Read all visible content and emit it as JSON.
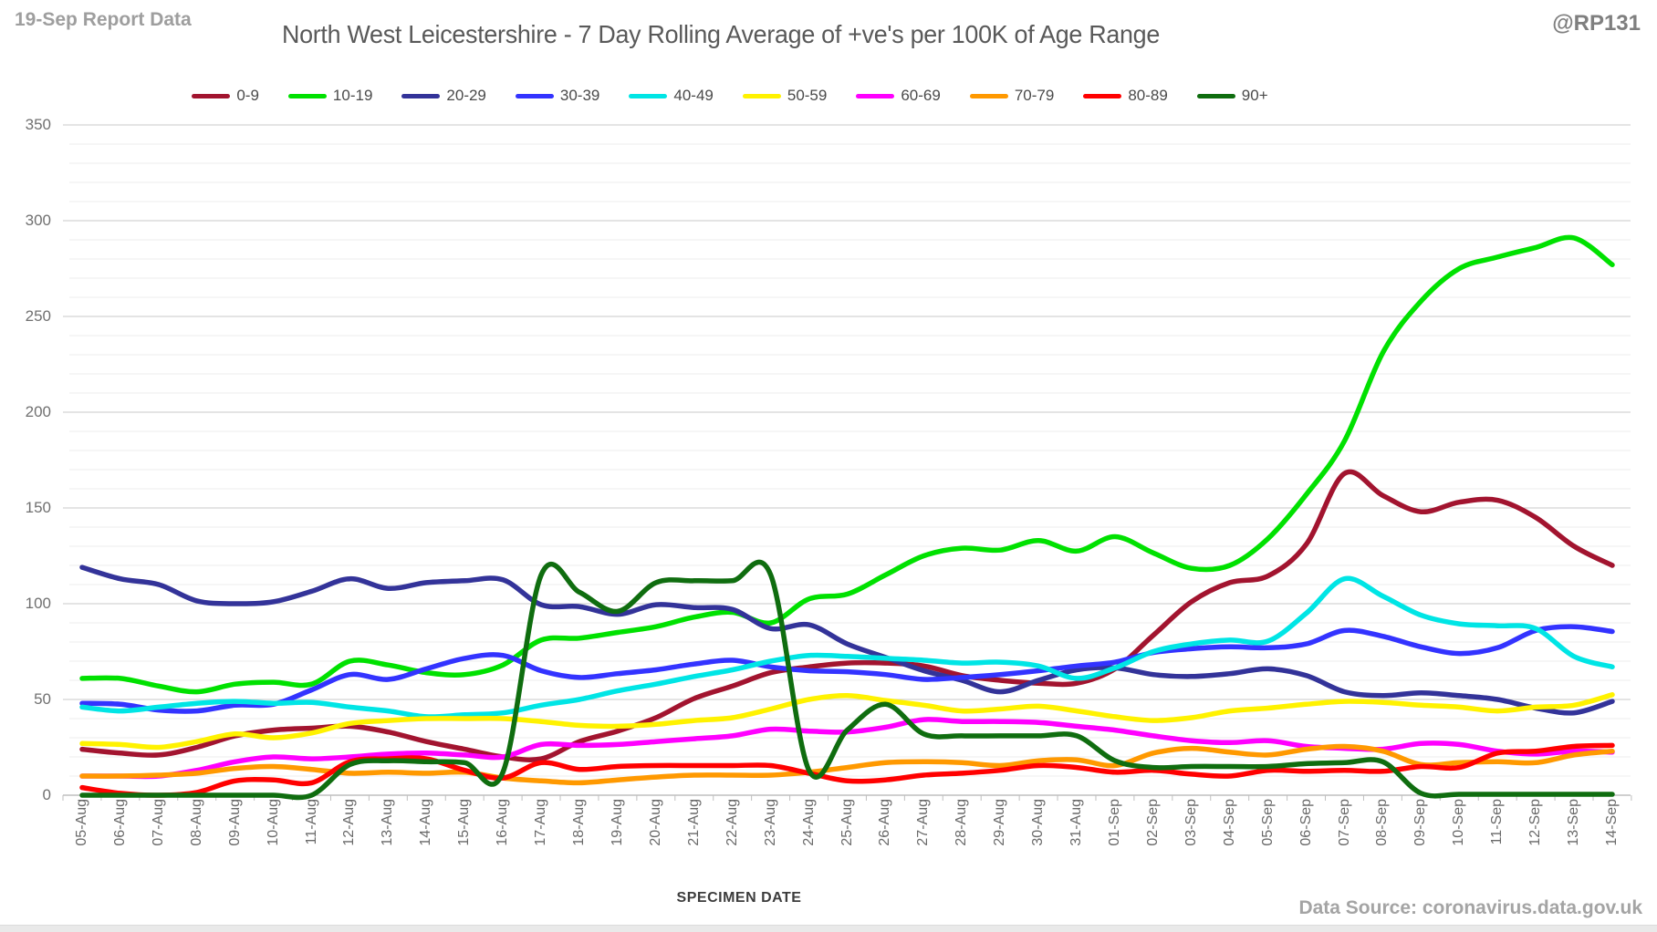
{
  "header": {
    "report_note": "19-Sep Report Data",
    "title": "North West Leicestershire - 7 Day Rolling Average of +ve's per 100K of Age Range",
    "handle": "@RP131"
  },
  "footer": {
    "source": "Data Source: coronavirus.data.gov.uk",
    "xaxis_title": "SPECIMEN DATE"
  },
  "colors": {
    "title_text": "#595959",
    "note_text": "#9E9E9E",
    "handle_text": "#7F7F7F",
    "source_text": "#A4A4A4",
    "axis_line": "#BFBFBF",
    "grid_minor": "#ECECEC",
    "grid_major": "#D3D3D3",
    "y_label_text": "#707070",
    "x_label_text": "#696969"
  },
  "chart_data": {
    "type": "line",
    "title": "North West Leicestershire - 7 Day Rolling Average of +ve's per 100K of Age Range",
    "xlabel": "SPECIMEN DATE",
    "ylabel": "",
    "ylim": [
      0,
      350
    ],
    "ytick_step": 50,
    "minor_grid_step": 10,
    "grid": true,
    "legend_position": "top",
    "smooth_lines": true,
    "categories": [
      "05-Aug",
      "06-Aug",
      "07-Aug",
      "08-Aug",
      "09-Aug",
      "10-Aug",
      "11-Aug",
      "12-Aug",
      "13-Aug",
      "14-Aug",
      "15-Aug",
      "16-Aug",
      "17-Aug",
      "18-Aug",
      "19-Aug",
      "20-Aug",
      "21-Aug",
      "22-Aug",
      "23-Aug",
      "24-Aug",
      "25-Aug",
      "26-Aug",
      "27-Aug",
      "28-Aug",
      "29-Aug",
      "30-Aug",
      "31-Aug",
      "01-Sep",
      "02-Sep",
      "03-Sep",
      "04-Sep",
      "05-Sep",
      "06-Sep",
      "07-Sep",
      "08-Sep",
      "09-Sep",
      "10-Sep",
      "11-Sep",
      "12-Sep",
      "13-Sep",
      "14-Sep"
    ],
    "series": [
      {
        "name": "0-9",
        "color": "#A2142F",
        "values": [
          24,
          22,
          21,
          25,
          31,
          34,
          35,
          36,
          33,
          28,
          24,
          20,
          19,
          28,
          33.5,
          40.5,
          50.5,
          57,
          64,
          67,
          69,
          69,
          67.5,
          62.5,
          60,
          58.5,
          58.5,
          66,
          83.5,
          101,
          111,
          114.5,
          131,
          168,
          156.5,
          148,
          153,
          154,
          145,
          130,
          120
        ]
      },
      {
        "name": "10-19",
        "color": "#00E100",
        "values": [
          61,
          61,
          57,
          54,
          58,
          59,
          58,
          70,
          68,
          64,
          63,
          68,
          81,
          82,
          85,
          88,
          93,
          95.5,
          90,
          102.5,
          105,
          115,
          125,
          129,
          128,
          133,
          127.5,
          135,
          126.5,
          118.5,
          120,
          134,
          157,
          185,
          231,
          258,
          275,
          281,
          286,
          291,
          277
        ]
      },
      {
        "name": "20-29",
        "color": "#333399",
        "values": [
          119,
          113,
          110,
          101.5,
          100,
          101,
          106.5,
          113,
          108,
          111,
          112,
          112.5,
          99.5,
          98.5,
          94.5,
          99.5,
          98,
          97,
          87,
          89,
          79,
          72,
          65,
          60,
          54,
          60,
          65.5,
          66.5,
          63,
          62,
          63.5,
          66,
          62.5,
          54,
          52,
          53.5,
          52,
          50,
          45.5,
          43,
          49
        ]
      },
      {
        "name": "30-39",
        "color": "#3333FF",
        "values": [
          48,
          47.5,
          44.5,
          44,
          47,
          47.5,
          55,
          63,
          60.5,
          66,
          71.5,
          73,
          65,
          61.5,
          63.5,
          65.5,
          68.5,
          70.5,
          67,
          65,
          64.5,
          63,
          60.5,
          61.5,
          63,
          65,
          67.5,
          69.5,
          74.5,
          76.5,
          77.5,
          77,
          79,
          86,
          83,
          77.5,
          74,
          77,
          86,
          88,
          85.5
        ]
      },
      {
        "name": "40-49",
        "color": "#00E5E5",
        "values": [
          46,
          44,
          46,
          48,
          49,
          48,
          48.5,
          46,
          44,
          41,
          42,
          43,
          47,
          50,
          54.5,
          58,
          62,
          65.5,
          70,
          73,
          72.5,
          71.5,
          70.5,
          69,
          69.5,
          67.5,
          61,
          66.5,
          75,
          79,
          81,
          80.5,
          95,
          113,
          104,
          94,
          89.5,
          88.5,
          87,
          72.5,
          67
        ]
      },
      {
        "name": "50-59",
        "color": "#FFF200",
        "values": [
          27,
          26.5,
          25,
          28,
          32,
          30,
          32.5,
          37.5,
          39,
          40,
          40,
          40,
          38.5,
          36.5,
          36,
          37,
          39,
          40.5,
          45,
          50,
          52,
          49.5,
          47,
          44,
          45,
          46.5,
          44,
          41,
          39,
          40.5,
          44,
          45.5,
          47.5,
          49,
          48.5,
          47,
          46,
          44,
          46,
          47,
          52.5
        ]
      },
      {
        "name": "60-69",
        "color": "#FF00FF",
        "values": [
          10,
          10,
          10,
          13,
          17.5,
          20,
          19,
          20,
          21.5,
          22,
          21,
          20,
          26.5,
          26,
          26.5,
          28,
          29.5,
          31,
          34.5,
          33.5,
          33,
          35.5,
          39.5,
          38.5,
          38.5,
          38,
          36,
          34,
          31,
          28.5,
          27.5,
          28.5,
          25.5,
          24.5,
          24,
          27,
          26.5,
          23,
          21.5,
          23,
          22.5
        ]
      },
      {
        "name": "70-79",
        "color": "#FF9900",
        "values": [
          10,
          10,
          10.5,
          11.5,
          14,
          15,
          13.5,
          11.5,
          12,
          11.5,
          12,
          9,
          7.5,
          6.5,
          8,
          9.5,
          10.5,
          10.5,
          10.5,
          12,
          14.5,
          17,
          17.5,
          17,
          15.5,
          18,
          18.5,
          15.5,
          22,
          24.5,
          22.5,
          21,
          24,
          25.5,
          23,
          16,
          17,
          17.5,
          17,
          21,
          23
        ]
      },
      {
        "name": "80-89",
        "color": "#FF0000",
        "values": [
          4,
          1,
          0,
          1.5,
          7.5,
          8,
          6.5,
          17.5,
          19,
          19,
          13,
          9,
          17,
          13.5,
          15,
          15.5,
          15.5,
          15.5,
          15.5,
          11.5,
          7.5,
          8,
          10.5,
          11.5,
          13,
          15.5,
          14.5,
          12,
          13,
          11,
          10,
          13,
          12.5,
          13,
          12.5,
          15,
          14.5,
          22,
          23,
          25.5,
          26
        ]
      },
      {
        "name": "90+",
        "color": "#0F6D0F",
        "values": [
          0,
          0,
          0,
          0,
          0,
          0,
          0,
          16,
          18,
          17.5,
          17,
          12,
          115,
          106,
          96,
          111,
          112,
          112,
          115,
          13,
          34,
          47.5,
          32,
          31,
          31,
          31,
          31,
          18,
          14.5,
          15,
          15,
          15,
          16.5,
          17,
          17.5,
          1,
          0.5,
          0.5,
          0.5,
          0.5,
          0.5
        ]
      }
    ]
  }
}
